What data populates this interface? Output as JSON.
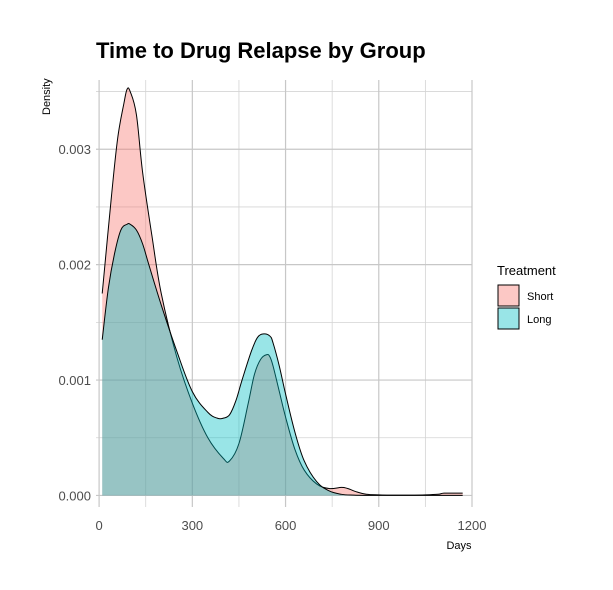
{
  "chart_data": {
    "type": "area",
    "title": "Time to Drug Relapse by Group",
    "xlabel": "Days",
    "ylabel": "Density",
    "xlim": [
      -10,
      1200
    ],
    "ylim": [
      -0.0001,
      0.0036
    ],
    "x_ticks": [
      0,
      300,
      600,
      900,
      1200
    ],
    "y_ticks": [
      0.0,
      0.001,
      0.002,
      0.003
    ],
    "y_tick_labels": [
      "0.000",
      "0.001",
      "0.002",
      "0.003"
    ],
    "grid": true,
    "legend_title": "Treatment",
    "legend_position": "right",
    "series": [
      {
        "name": "Short",
        "color": "#F8766D",
        "x": [
          10,
          40,
          60,
          80,
          90,
          100,
          120,
          140,
          170,
          200,
          250,
          300,
          350,
          400,
          420,
          450,
          480,
          500,
          520,
          540,
          550,
          560,
          580,
          600,
          630,
          660,
          700,
          740,
          780,
          800,
          830,
          860,
          900,
          950,
          1000,
          1050,
          1090,
          1110,
          1150,
          1170
        ],
        "y": [
          0.00175,
          0.0026,
          0.0031,
          0.0034,
          0.00352,
          0.0035,
          0.0033,
          0.0028,
          0.00225,
          0.00175,
          0.0012,
          0.0008,
          0.0005,
          0.00032,
          0.0003,
          0.00045,
          0.0008,
          0.00105,
          0.00118,
          0.00122,
          0.0012,
          0.00112,
          0.0009,
          0.00068,
          0.0004,
          0.00022,
          0.0001,
          6e-05,
          7e-05,
          6e-05,
          3e-05,
          1e-05,
          5e-06,
          3e-06,
          3e-06,
          5e-06,
          1e-05,
          2e-05,
          2e-05,
          2e-05
        ]
      },
      {
        "name": "Long",
        "color": "#00BFC4",
        "x": [
          10,
          30,
          50,
          70,
          90,
          100,
          120,
          140,
          160,
          200,
          250,
          300,
          350,
          380,
          400,
          420,
          440,
          460,
          490,
          510,
          530,
          550,
          560,
          580,
          600,
          630,
          660,
          700,
          740,
          780,
          820,
          860,
          900,
          950,
          1000,
          1050,
          1100,
          1150,
          1170
        ],
        "y": [
          0.00135,
          0.0018,
          0.0021,
          0.0023,
          0.00235,
          0.00235,
          0.0023,
          0.00218,
          0.002,
          0.00165,
          0.00125,
          0.0009,
          0.00072,
          0.00067,
          0.00067,
          0.0007,
          0.00082,
          0.001,
          0.00125,
          0.00137,
          0.0014,
          0.00138,
          0.00132,
          0.00112,
          0.00088,
          0.00055,
          0.0003,
          0.00012,
          4e-05,
          1e-05,
          3e-06,
          1e-06,
          1e-06,
          1e-06,
          1e-06,
          1e-06,
          1e-06,
          1e-06,
          1e-06
        ]
      }
    ]
  }
}
